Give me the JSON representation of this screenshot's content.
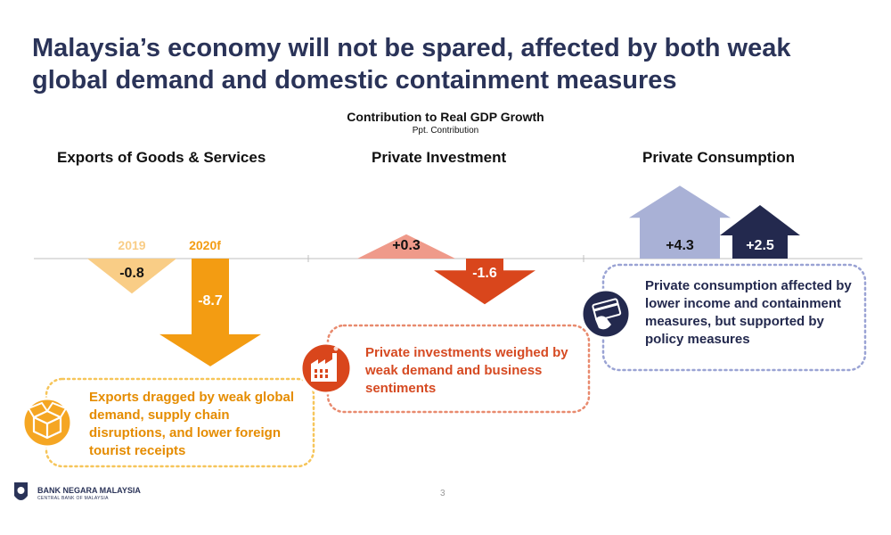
{
  "slide": {
    "title": "Malaysia’s economy will not be spared, affected by both weak global demand and domestic containment measures",
    "page_number": "3"
  },
  "chart_data": {
    "type": "bar",
    "title": "Contribution to Real GDP Growth",
    "subtitle": "Ppt. Contribution",
    "panels": [
      {
        "name": "Exports of Goods & Services",
        "series": [
          {
            "name": "2019",
            "value": -0.8,
            "label": "-0.8",
            "color": "#f9cd86"
          },
          {
            "name": "2020f",
            "value": -8.7,
            "label": "-8.7",
            "color": "#f39c12"
          }
        ],
        "note": "Exports dragged by weak global demand, supply chain disruptions, and lower foreign tourist receipts",
        "icon": "box-icon",
        "accent": "#f5b53c"
      },
      {
        "name": "Private Investment",
        "series": [
          {
            "name": "2019",
            "value": 0.3,
            "label": "+0.3",
            "color": "#ef9a8a"
          },
          {
            "name": "2020f",
            "value": -1.6,
            "label": "-1.6",
            "color": "#d9461c"
          }
        ],
        "note": "Private investments weighed by weak demand and business sentiments",
        "icon": "factory-icon",
        "accent": "#d9461c"
      },
      {
        "name": "Private Consumption",
        "series": [
          {
            "name": "2019",
            "value": 4.3,
            "label": "+4.3",
            "color": "#a9b1d6"
          },
          {
            "name": "2020f",
            "value": 2.5,
            "label": "+2.5",
            "color": "#23294e"
          }
        ],
        "note": "Private consumption affected by lower income and containment measures, but supported by policy measures",
        "icon": "credit-card-icon",
        "accent": "#9aa3d4"
      }
    ]
  },
  "footer": {
    "bank_name": "BANK NEGARA MALAYSIA",
    "bank_sub": "CENTRAL BANK OF MALAYSIA"
  }
}
